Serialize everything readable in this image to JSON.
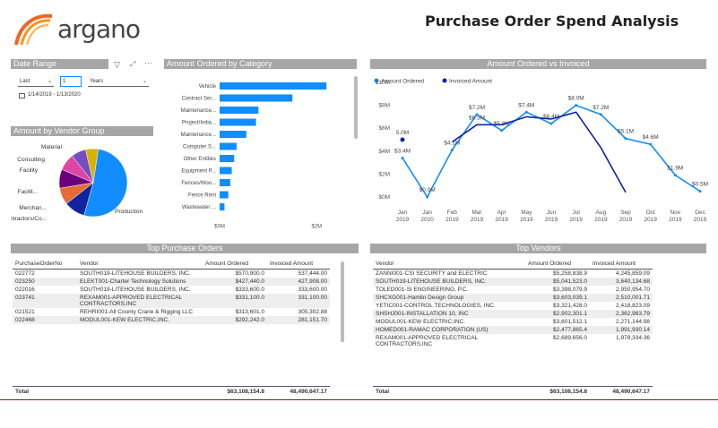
{
  "logo": {
    "text": "argano"
  },
  "page_title": "Purchase Order Spend Analysis",
  "date_range": {
    "title": "Date Range",
    "mode": "Last",
    "value": "1",
    "unit": "Years",
    "range_text": "1/14/2019 - 1/13/2020"
  },
  "vendor_group": {
    "title": "Amount by Vendor Group"
  },
  "category": {
    "title": "Amount Ordered by Category"
  },
  "ordered_vs_invoiced": {
    "title": "Amount Ordered vs Invoiced"
  },
  "top_po": {
    "title": "Top Purchase Orders",
    "columns": [
      "PurchaseOrderNo",
      "Vendor",
      "Amount Ordered",
      "Invoiced Amount"
    ],
    "rows": [
      {
        "po": "022772",
        "vendor": "SOUTH019-LITEHOUSE BUILDERS, INC.",
        "ordered": "$570,900.0",
        "invoiced": "537,444.00"
      },
      {
        "po": "023250",
        "vendor": "ELEKT001-Charter Technology Solutions",
        "ordered": "$427,440.0",
        "invoiced": "427,908.00"
      },
      {
        "po": "022016",
        "vendor": "SOUTH019-LITEHOUSE BUILDERS, INC.",
        "ordered": "$333,600.0",
        "invoiced": "333,600.00"
      },
      {
        "po": "023741",
        "vendor": "REXAM001-APPROVED ELECTRICAL CONTRACTORS,INC",
        "ordered": "$331,100.0",
        "invoiced": "331,100.00"
      },
      {
        "po": "021521",
        "vendor": "REHRI001-All County Crane & Rigging LLC",
        "ordered": "$313,601.0",
        "invoiced": "305,302.88"
      },
      {
        "po": "022468",
        "vendor": "MODUL001-KEW ELECTRIC,INC.",
        "ordered": "$292,242.0",
        "invoiced": "281,151.70"
      }
    ],
    "total_label": "Total",
    "total_ordered": "$63,108,154.8",
    "total_invoiced": "48,490,647.17"
  },
  "top_vendors": {
    "title": "Top Vendors",
    "columns": [
      "Vendor",
      "Amount Ordered",
      "Invoiced Amount"
    ],
    "rows": [
      {
        "vendor": "ZANNI001-CSI SECURITY and ELECTRIC",
        "ordered": "$5,258,838.9",
        "invoiced": "4,245,859.09"
      },
      {
        "vendor": "SOUTH019-LITEHOUSE BUILDERS, INC.",
        "ordered": "$5,041,523.0",
        "invoiced": "3,640,134.68"
      },
      {
        "vendor": "TOLED001-SI ENGINEERING, P.C.",
        "ordered": "$3,398,079.9",
        "invoiced": "2,950,954.70"
      },
      {
        "vendor": "SHCXG001-Hamlin Design Group",
        "ordered": "$3,603,039.1",
        "invoiced": "2,510,001.71"
      },
      {
        "vendor": "YETIC001-CONTROL TECHNOLOGIES, INC.",
        "ordered": "$3,321,428.0",
        "invoiced": "2,418,823.09"
      },
      {
        "vendor": "SHSHJ001-INSTALLATION 10, INC",
        "ordered": "$2,902,301.1",
        "invoiced": "2,362,983.79"
      },
      {
        "vendor": "MODUL001-KEW ELECTRIC,INC.",
        "ordered": "$3,601,512.1",
        "invoiced": "2,271,144.98"
      },
      {
        "vendor": "HOMED001-RAMAC CORPORATION (US)",
        "ordered": "$2,477,865.4",
        "invoiced": "1,991,930.14"
      },
      {
        "vendor": "REXAM001-APPROVED ELECTRICAL CONTRACTORS,INC",
        "ordered": "$2,689,656.0",
        "invoiced": "1,978,334.36"
      }
    ],
    "total_label": "Total",
    "total_ordered": "$63,108,154.8",
    "total_invoiced": "48,490,647.17"
  },
  "colors": {
    "accent": "#118dff",
    "dark": "#12239e",
    "bar": "#118dff",
    "panel_title": "#a6a6a6",
    "logo": "#f26522"
  },
  "chart_data": [
    {
      "type": "pie",
      "title": "Amount by Vendor Group",
      "labels": [
        "Production",
        "Contractors/Co...",
        "Merchan...",
        "Facilit...",
        "Facility",
        "Consulting",
        "Material"
      ],
      "values": [
        52,
        10,
        8,
        9,
        8,
        7,
        6
      ],
      "colors": [
        "#118dff",
        "#12239e",
        "#e66c37",
        "#6b007b",
        "#e044a7",
        "#744ec2",
        "#d9b300"
      ]
    },
    {
      "type": "bar",
      "orientation": "horizontal",
      "title": "Amount Ordered by Category",
      "categories": [
        "Vehicle",
        "Contract Ser...",
        "Maintenance...",
        "Project/Initia...",
        "Maintenance...",
        "Computer S...",
        "Other Entities",
        "Equipment P...",
        "Fences/Woo...",
        "Fence Rent",
        "Wastewater ..."
      ],
      "values": [
        2.2,
        1.5,
        0.8,
        0.75,
        0.55,
        0.35,
        0.3,
        0.25,
        0.22,
        0.18,
        0.1
      ],
      "xticks": [
        "$0M",
        "$2M"
      ],
      "xlim": [
        0,
        2.4
      ]
    },
    {
      "type": "line",
      "title": "Amount Ordered vs Invoiced",
      "x": [
        "Jan 2019",
        "Jan 2020",
        "Feb 2019",
        "Mar 2019",
        "Apr 2019",
        "May 2019",
        "Jun 2019",
        "Jul 2019",
        "Aug 2019",
        "Sep 2019",
        "Oct 2019",
        "Nov 2019",
        "Dec 2019"
      ],
      "yticks": [
        "$0M",
        "$2M",
        "$4M",
        "$6M",
        "$8M",
        "$10M"
      ],
      "ylim": [
        0,
        10
      ],
      "series": [
        {
          "name": "Amount Ordered",
          "values": [
            3.4,
            0,
            4.1,
            7.2,
            5.8,
            7.4,
            6.4,
            8.0,
            7.2,
            5.1,
            4.6,
            1.9,
            0.5
          ],
          "labels": [
            "$3.4M",
            "$0.0M",
            "$4.1M",
            "$7.2M",
            "$5.8M",
            "$7.4M",
            "$6.4M",
            "$8.0M",
            "$7.2M",
            "$5.1M",
            "$4.6M",
            "$1.9M",
            "$0.5M"
          ]
        },
        {
          "name": "Invoiced Amount",
          "values": [
            5.0,
            null,
            4.8,
            6.3,
            6.3,
            7.0,
            6.8,
            7.4,
            4.3,
            0.4,
            null,
            null,
            null
          ],
          "labels": [
            "5.0M",
            "",
            "",
            "$6.3M",
            "",
            "",
            "",
            "",
            "",
            "",
            "",
            "",
            ""
          ]
        }
      ]
    }
  ]
}
